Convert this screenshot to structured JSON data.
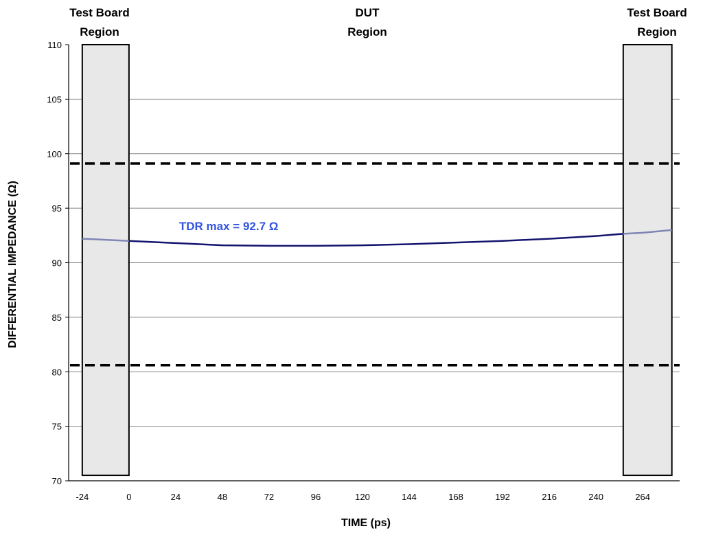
{
  "chart_data": {
    "type": "line",
    "xlabel": "TIME (ps)",
    "ylabel": "DIFFERENTIAL IMPEDANCE (Ω)",
    "xlim": [
      -31,
      283
    ],
    "ylim": [
      70,
      110
    ],
    "xticks": [
      "-24",
      "0",
      "24",
      "48",
      "72",
      "96",
      "120",
      "144",
      "168",
      "192",
      "216",
      "240",
      "264"
    ],
    "yticks": [
      "110",
      "105",
      "100",
      "95",
      "90",
      "85",
      "80",
      "75",
      "70"
    ],
    "grid": "horizontal",
    "limit_lines": [
      99.1,
      80.6
    ],
    "regions": [
      {
        "label_line1": "Test Board",
        "label_line2": "Region",
        "x_start": -24,
        "x_end": 0
      },
      {
        "label_line1": "DUT",
        "label_line2": "Region"
      },
      {
        "label_line1": "Test Board",
        "label_line2": "Region",
        "x_start": 254,
        "x_end": 279
      }
    ],
    "series": [
      {
        "x": [
          -24,
          -12,
          0,
          24,
          48,
          72,
          96,
          120,
          144,
          168,
          192,
          216,
          240,
          254,
          264,
          279
        ],
        "y": [
          92.2,
          92.1,
          92.0,
          91.8,
          91.6,
          91.55,
          91.55,
          91.6,
          91.7,
          91.85,
          92.0,
          92.2,
          92.45,
          92.65,
          92.75,
          93.0
        ]
      }
    ],
    "annotation": {
      "text": "TDR max = 92.7 Ω",
      "x": 24,
      "y": 93.3
    },
    "colors": {
      "line_dut": "#14146e",
      "line_board": "#7f86b5",
      "annotation": "#3355e0",
      "region_fill": "#e8e8e8",
      "grid": "#888888"
    }
  }
}
